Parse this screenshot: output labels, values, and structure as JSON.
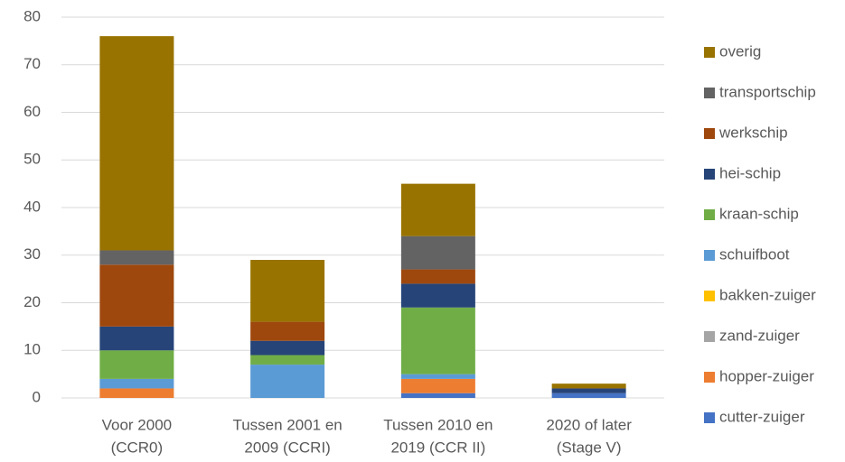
{
  "chart_data": {
    "type": "bar",
    "stacked": true,
    "categories": [
      [
        "Voor 2000",
        "(CCR0)"
      ],
      [
        "Tussen 2001 en",
        "2009 (CCRI)"
      ],
      [
        "Tussen 2010 en",
        "2019 (CCR II)"
      ],
      [
        "2020 of later",
        "(Stage V)"
      ]
    ],
    "series": [
      {
        "name": "cutter-zuiger",
        "color": "#4472c4",
        "values": [
          0,
          0,
          1,
          1
        ]
      },
      {
        "name": "hopper-zuiger",
        "color": "#ed7d31",
        "values": [
          2,
          0,
          3,
          0
        ]
      },
      {
        "name": "zand-zuiger",
        "color": "#a5a5a5",
        "values": [
          0,
          0,
          0,
          0
        ]
      },
      {
        "name": "bakken-zuiger",
        "color": "#ffc000",
        "values": [
          0,
          0,
          0,
          0
        ]
      },
      {
        "name": "schuifboot",
        "color": "#5b9bd5",
        "values": [
          2,
          7,
          1,
          0
        ]
      },
      {
        "name": "kraan-schip",
        "color": "#70ad47",
        "values": [
          6,
          2,
          14,
          0
        ]
      },
      {
        "name": "hei-schip",
        "color": "#264478",
        "values": [
          5,
          3,
          5,
          1
        ]
      },
      {
        "name": "werkschip",
        "color": "#9e480e",
        "values": [
          13,
          4,
          3,
          0
        ]
      },
      {
        "name": "transportschip",
        "color": "#636363",
        "values": [
          3,
          0,
          7,
          0
        ]
      },
      {
        "name": "overig",
        "color": "#997300",
        "values": [
          45,
          13,
          11,
          1
        ]
      }
    ],
    "ylim": [
      0,
      80
    ],
    "yticks": [
      0,
      10,
      20,
      30,
      40,
      50,
      60,
      70,
      80
    ],
    "grid": true,
    "legend": "right"
  }
}
